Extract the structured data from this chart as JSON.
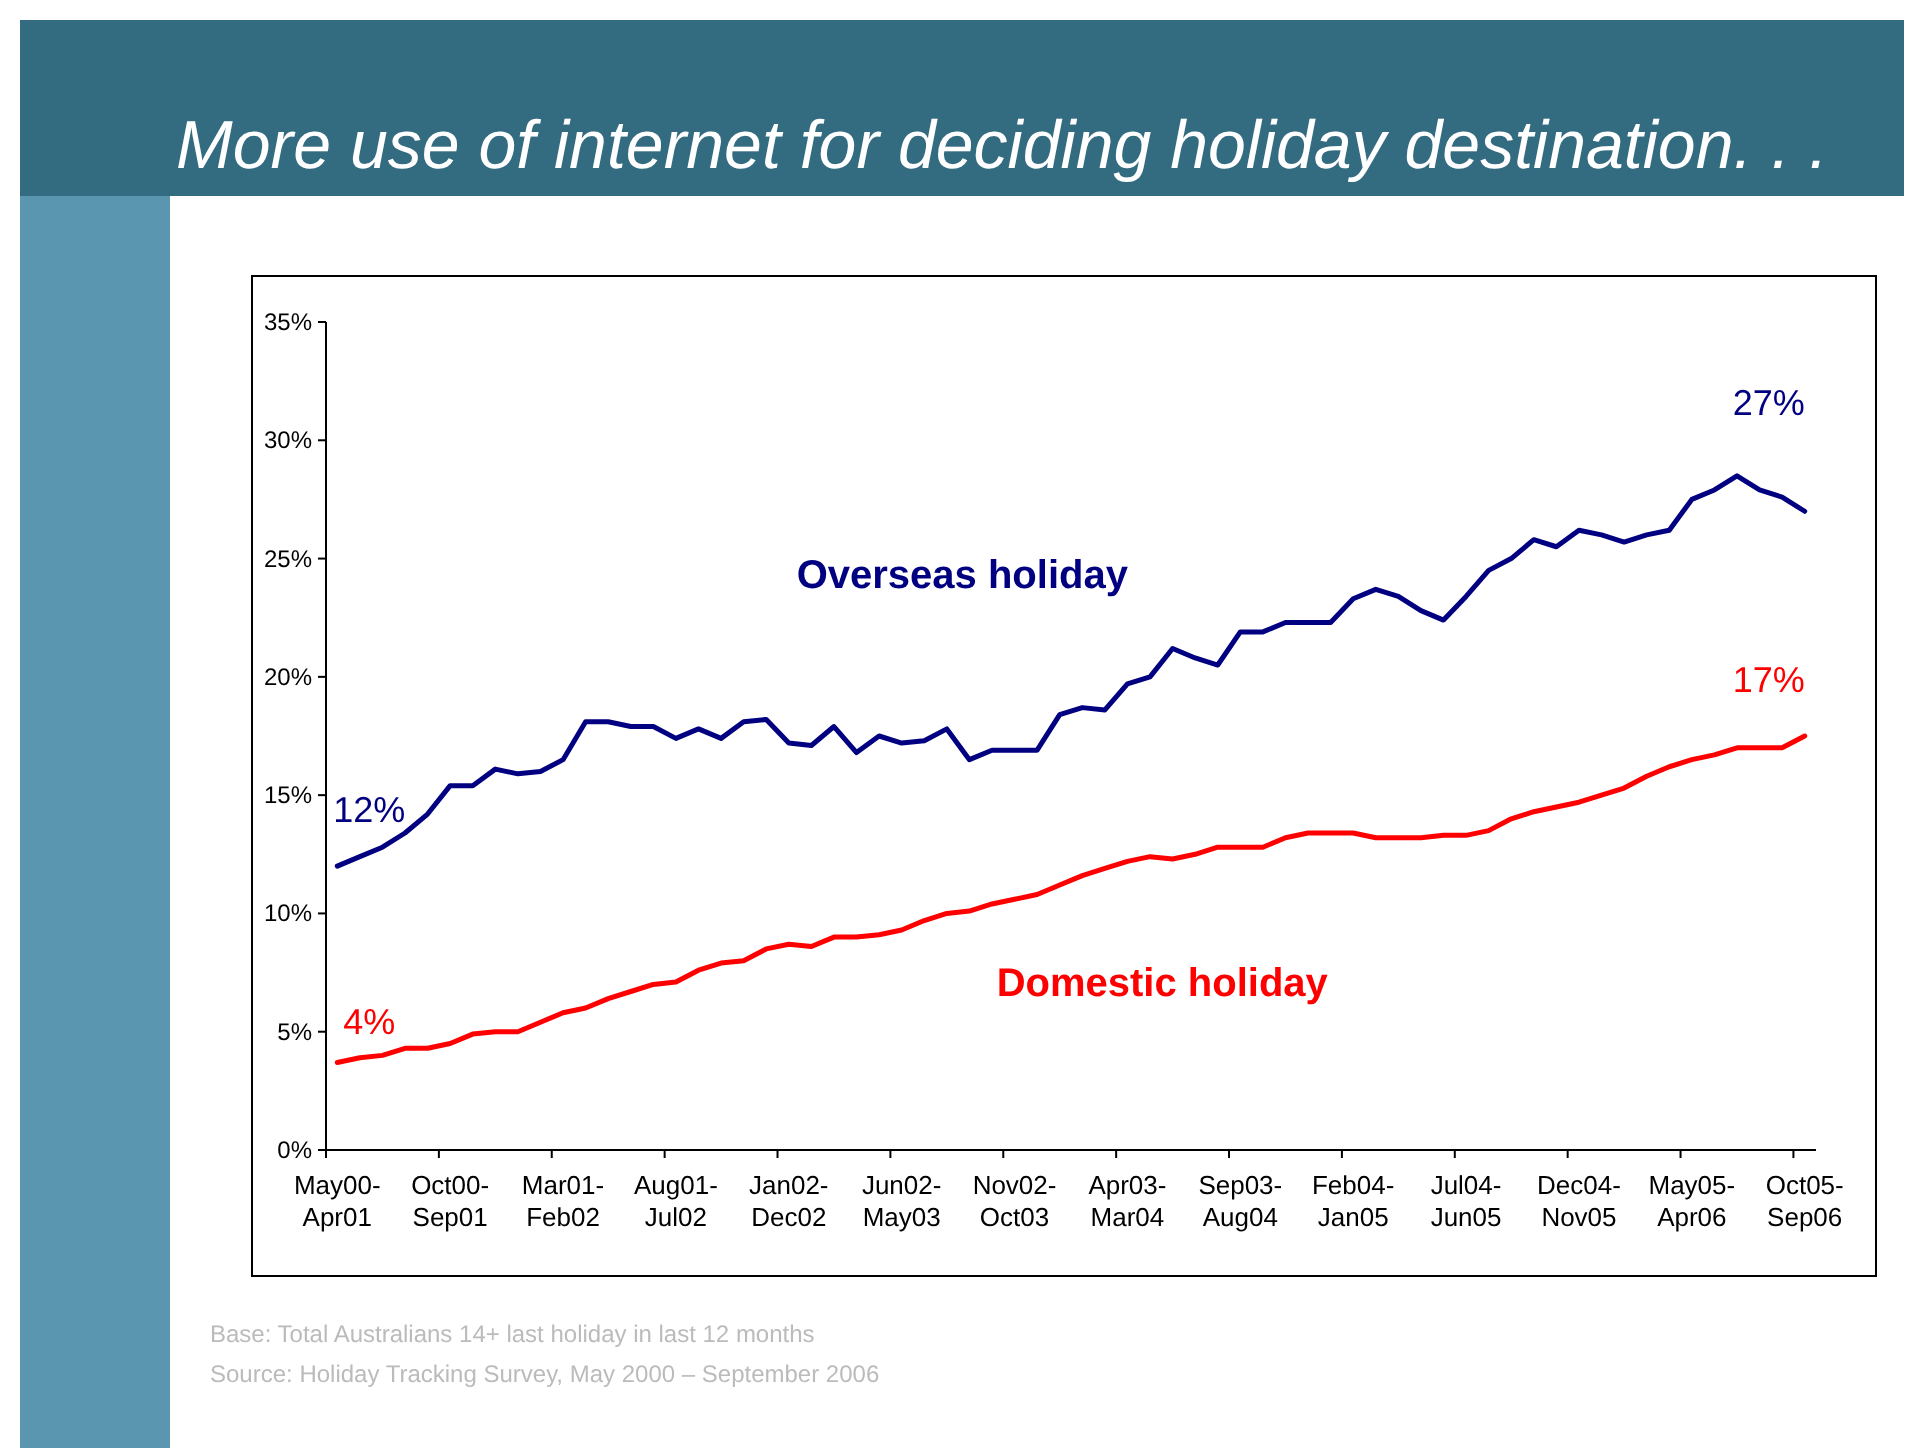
{
  "chart_data": {
    "type": "line",
    "title": "More use of internet for deciding holiday destination. . .",
    "categories": [
      "May00-Apr01",
      null,
      null,
      null,
      null,
      "Oct00-Sep01",
      null,
      null,
      null,
      null,
      "Mar01-Feb02",
      null,
      null,
      null,
      null,
      "Aug01-Jul02",
      null,
      null,
      null,
      null,
      "Jan02-Dec02",
      null,
      null,
      null,
      null,
      "Jun02-May03",
      null,
      null,
      null,
      null,
      "Nov02-Oct03",
      null,
      null,
      null,
      null,
      "Apr03-Mar04",
      null,
      null,
      null,
      null,
      "Sep03-Aug04",
      null,
      null,
      null,
      null,
      "Feb04-Jan05",
      null,
      null,
      null,
      null,
      "Jul04-Jun05",
      null,
      null,
      null,
      null,
      "Dec04-Nov05",
      null,
      null,
      null,
      null,
      "May05-Apr06",
      null,
      null,
      null,
      null,
      "Oct05-Sep06"
    ],
    "series": [
      {
        "name": "Overseas holiday",
        "color": "#000080",
        "values": [
          12.0,
          12.4,
          12.8,
          13.4,
          14.2,
          15.4,
          15.4,
          16.1,
          15.9,
          16.0,
          16.5,
          18.1,
          18.1,
          17.9,
          17.9,
          17.4,
          17.8,
          17.4,
          18.1,
          18.2,
          17.2,
          17.1,
          17.9,
          16.8,
          17.5,
          17.2,
          17.3,
          17.8,
          16.5,
          16.9,
          16.9,
          16.9,
          18.4,
          18.7,
          18.6,
          19.7,
          20.0,
          21.2,
          20.8,
          20.5,
          21.9,
          21.9,
          22.3,
          22.3,
          22.3,
          23.3,
          23.7,
          23.4,
          22.8,
          22.4,
          23.4,
          24.5,
          25.0,
          25.8,
          25.5,
          26.2,
          26.0,
          25.7,
          26.0,
          26.2,
          27.5,
          27.9,
          28.5,
          27.9,
          27.6,
          27.0
        ],
        "value_labels": [
          "12%",
          null,
          null,
          null,
          null,
          null,
          null,
          null,
          null,
          null,
          null,
          null,
          null,
          null,
          null,
          null,
          null,
          null,
          null,
          null,
          null,
          null,
          null,
          null,
          null,
          null,
          null,
          null,
          null,
          null,
          null,
          null,
          null,
          null,
          null,
          null,
          null,
          null,
          null,
          null,
          null,
          null,
          null,
          null,
          null,
          null,
          null,
          null,
          null,
          null,
          null,
          null,
          null,
          null,
          null,
          null,
          null,
          null,
          null,
          null,
          null,
          null,
          null,
          null,
          null,
          "27%"
        ]
      },
      {
        "name": "Domestic holiday",
        "color": "#ff0000",
        "values": [
          3.7,
          3.9,
          4.0,
          4.3,
          4.3,
          4.5,
          4.9,
          5.0,
          5.0,
          5.4,
          5.8,
          6.0,
          6.4,
          6.7,
          7.0,
          7.1,
          7.6,
          7.9,
          8.0,
          8.5,
          8.7,
          8.6,
          9.0,
          9.0,
          9.1,
          9.3,
          9.7,
          10.0,
          10.1,
          10.4,
          10.6,
          10.8,
          11.2,
          11.6,
          11.9,
          12.2,
          12.4,
          12.3,
          12.5,
          12.8,
          12.8,
          12.8,
          13.2,
          13.4,
          13.4,
          13.4,
          13.2,
          13.2,
          13.2,
          13.3,
          13.3,
          13.5,
          14.0,
          14.3,
          14.5,
          14.7,
          15.0,
          15.3,
          15.8,
          16.2,
          16.5,
          16.7,
          17.0,
          17.0,
          17.0,
          17.5
        ],
        "value_labels": [
          "4%",
          null,
          null,
          null,
          null,
          null,
          null,
          null,
          null,
          null,
          null,
          null,
          null,
          null,
          null,
          null,
          null,
          null,
          null,
          null,
          null,
          null,
          null,
          null,
          null,
          null,
          null,
          null,
          null,
          null,
          null,
          null,
          null,
          null,
          null,
          null,
          null,
          null,
          null,
          null,
          null,
          null,
          null,
          null,
          null,
          null,
          null,
          null,
          null,
          null,
          null,
          null,
          null,
          null,
          null,
          null,
          null,
          null,
          null,
          null,
          null,
          null,
          null,
          null,
          null,
          "17%"
        ]
      }
    ],
    "ylim": [
      0,
      35
    ],
    "yticks": [
      {
        "value": 0,
        "label": "0%"
      },
      {
        "value": 5,
        "label": "5%"
      },
      {
        "value": 10,
        "label": "10%"
      },
      {
        "value": 15,
        "label": "15%"
      },
      {
        "value": 20,
        "label": "20%"
      },
      {
        "value": 25,
        "label": "25%"
      },
      {
        "value": 30,
        "label": "30%"
      },
      {
        "value": 35,
        "label": "35%"
      }
    ],
    "grid": false,
    "legend": false,
    "marker": "none",
    "line_style": "solid",
    "annotations": [
      "Base: Total Australians 14+ last holiday in last 12 months",
      "Source: Holiday Tracking Survey, May 2000 – September 2006"
    ]
  }
}
